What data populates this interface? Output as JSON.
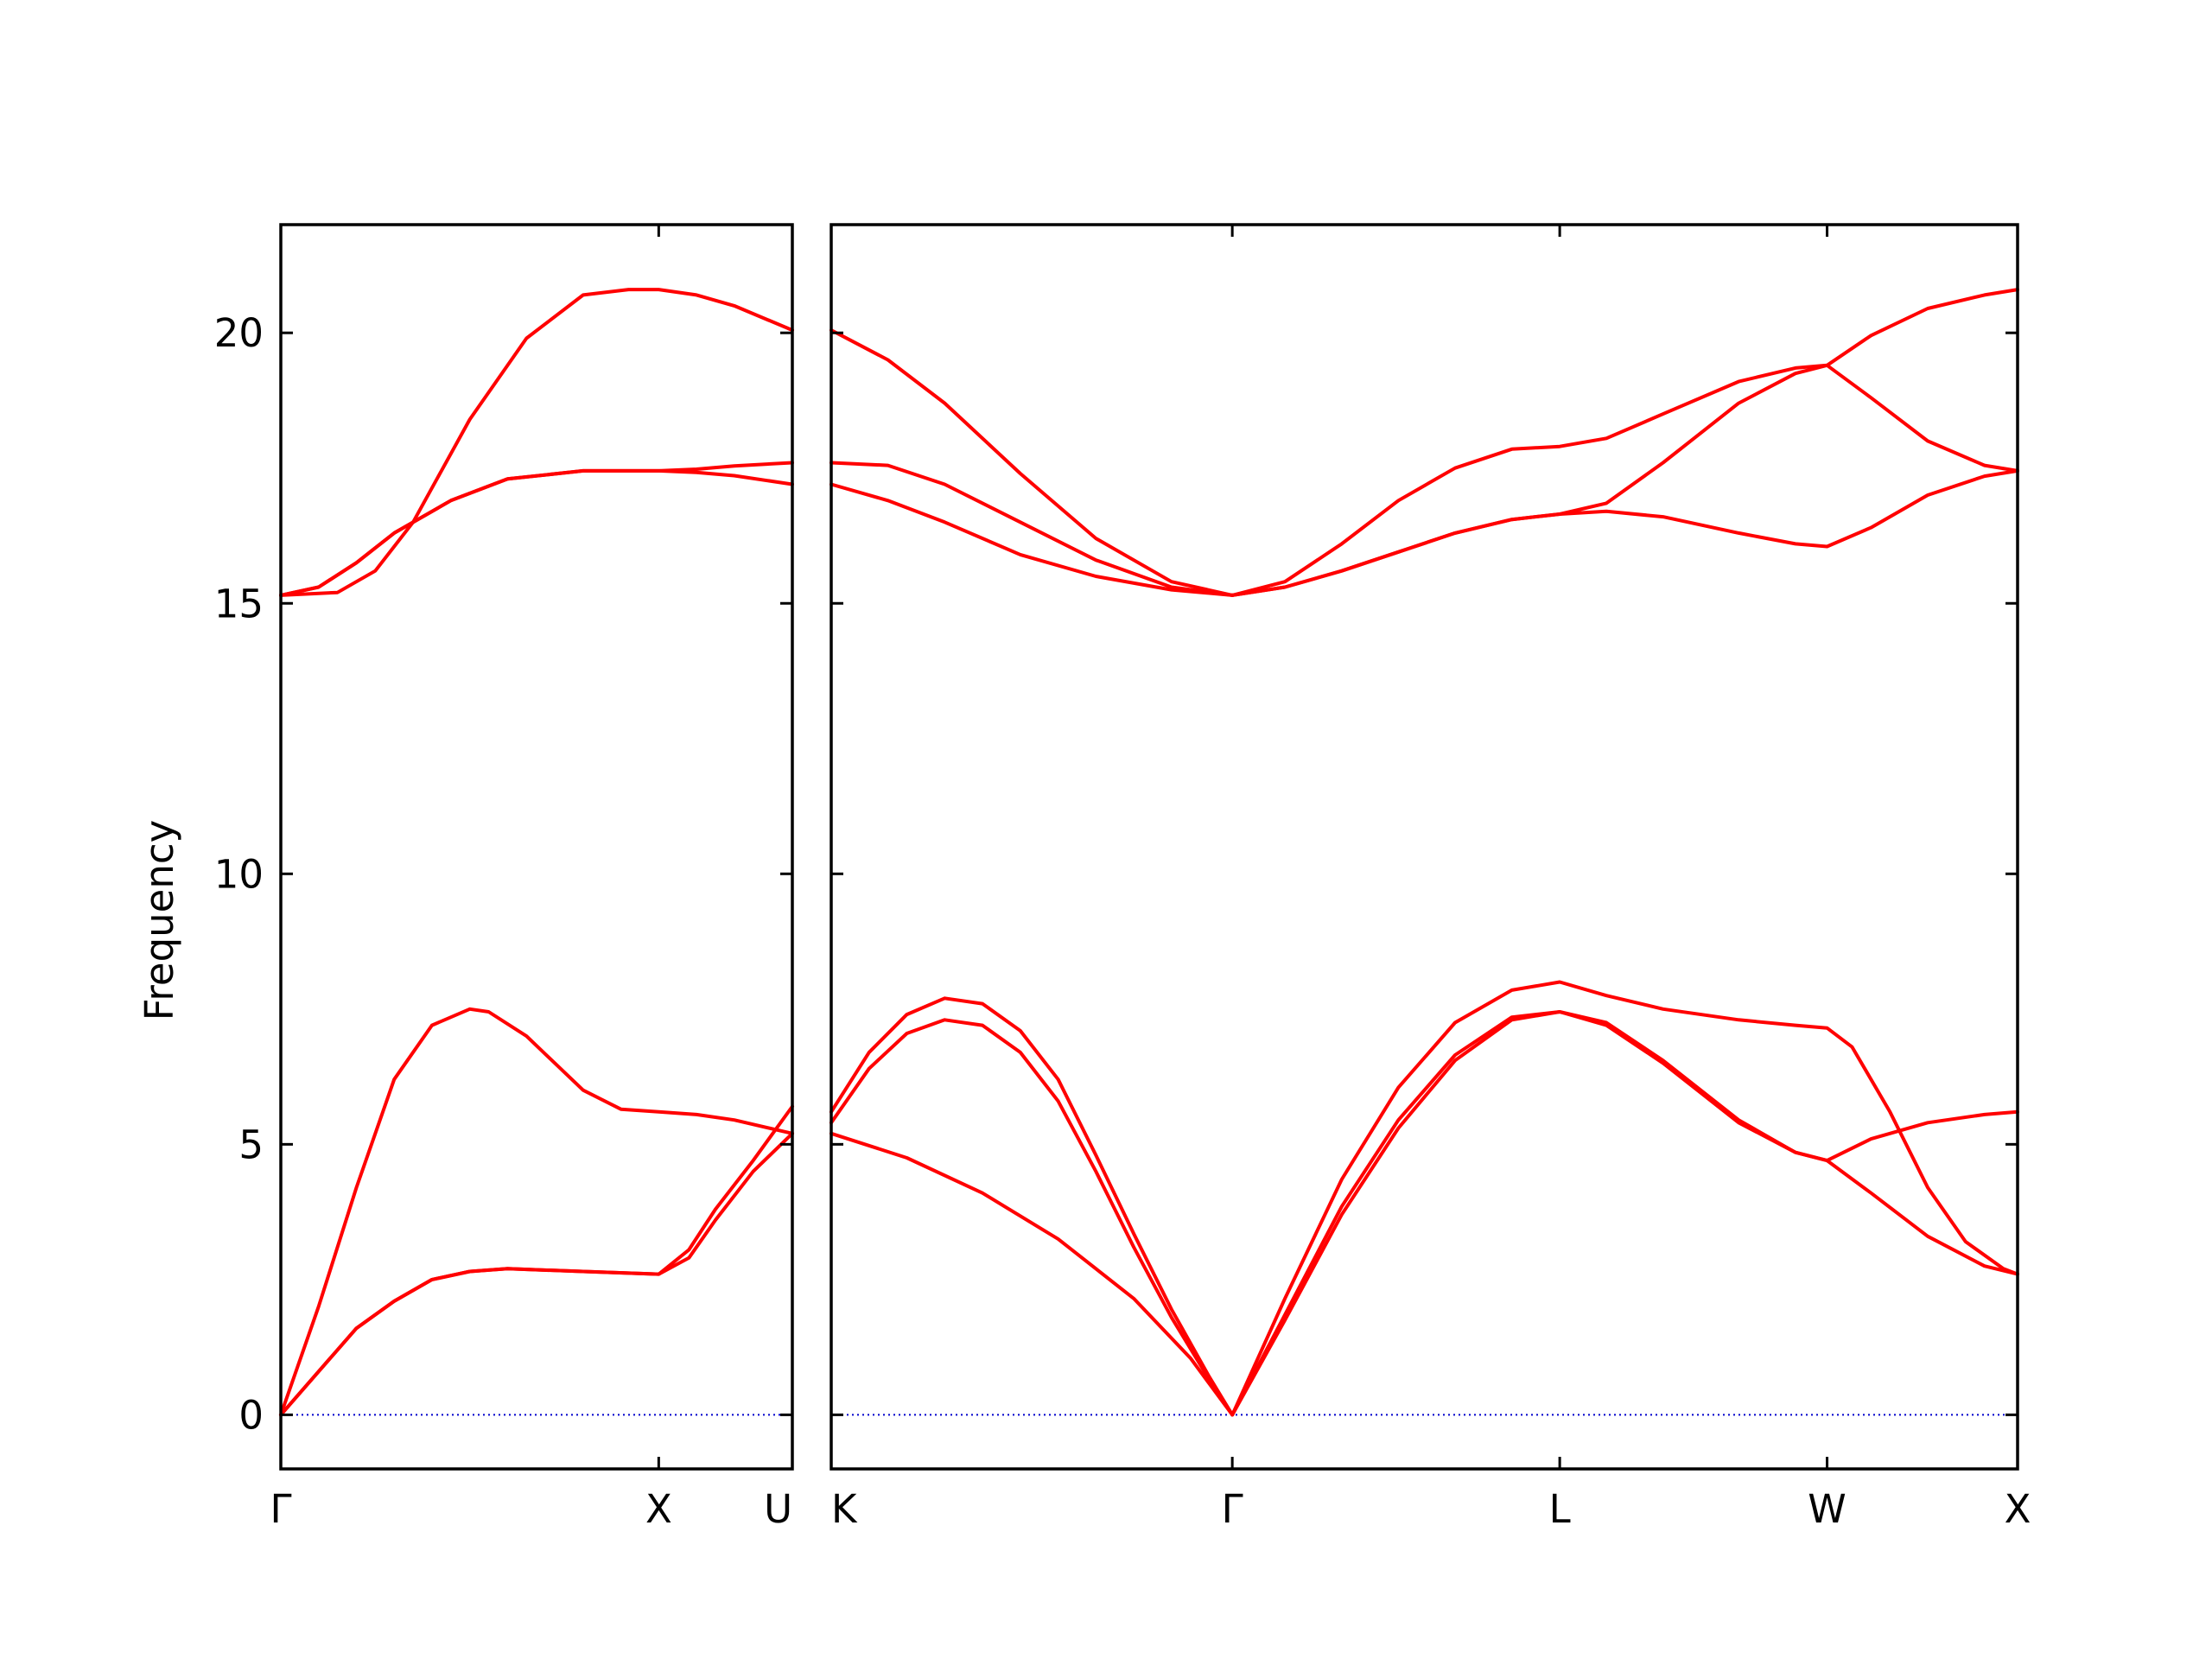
{
  "chart_data": {
    "type": "line",
    "ylabel": "Frequency",
    "ylim": [
      -1,
      22
    ],
    "yticks": [
      0,
      5,
      10,
      15,
      20
    ],
    "grid": false,
    "colors": {
      "band": "#ff0000",
      "zero_line": "#0000cc"
    },
    "segments": [
      {
        "xlim": [
          0,
          1.3536
        ],
        "xticks": [
          {
            "x": 0,
            "label": "Γ"
          },
          {
            "x": 1.0,
            "label": "X"
          },
          {
            "x": 1.3536,
            "label": "U"
          }
        ],
        "bands": [
          [
            [
              0,
              0
            ],
            [
              0.1,
              2.0
            ],
            [
              0.2,
              4.2
            ],
            [
              0.3,
              6.2
            ],
            [
              0.4,
              7.2
            ],
            [
              0.5,
              7.5
            ],
            [
              0.55,
              7.45
            ],
            [
              0.65,
              7.0
            ],
            [
              0.8,
              6.0
            ],
            [
              0.9,
              5.65
            ],
            [
              1.0,
              5.6
            ],
            [
              1.1,
              5.55
            ],
            [
              1.2,
              5.45
            ],
            [
              1.3536,
              5.2
            ]
          ],
          [
            [
              0,
              0
            ],
            [
              0.1,
              0.8
            ],
            [
              0.2,
              1.6
            ],
            [
              0.3,
              2.1
            ],
            [
              0.4,
              2.5
            ],
            [
              0.5,
              2.65
            ],
            [
              0.6,
              2.7
            ],
            [
              0.8,
              2.65
            ],
            [
              1.0,
              2.6
            ],
            [
              1.08,
              2.9
            ],
            [
              1.15,
              3.6
            ],
            [
              1.25,
              4.5
            ],
            [
              1.3536,
              5.2
            ]
          ],
          [
            [
              0,
              0
            ],
            [
              0.1,
              0.8
            ],
            [
              0.2,
              1.6
            ],
            [
              0.3,
              2.1
            ],
            [
              0.4,
              2.5
            ],
            [
              0.5,
              2.65
            ],
            [
              0.6,
              2.7
            ],
            [
              0.8,
              2.65
            ],
            [
              1.0,
              2.6
            ],
            [
              1.08,
              3.05
            ],
            [
              1.15,
              3.8
            ],
            [
              1.25,
              4.7
            ],
            [
              1.3536,
              5.7
            ]
          ],
          [
            [
              0,
              15.15
            ],
            [
              0.1,
              15.3
            ],
            [
              0.2,
              15.75
            ],
            [
              0.3,
              16.3
            ],
            [
              0.45,
              16.9
            ],
            [
              0.6,
              17.3
            ],
            [
              0.8,
              17.45
            ],
            [
              1.0,
              17.45
            ],
            [
              1.1,
              17.48
            ],
            [
              1.2,
              17.54
            ],
            [
              1.3536,
              17.6
            ]
          ],
          [
            [
              0,
              15.15
            ],
            [
              0.1,
              15.3
            ],
            [
              0.2,
              15.75
            ],
            [
              0.3,
              16.3
            ],
            [
              0.45,
              16.9
            ],
            [
              0.6,
              17.3
            ],
            [
              0.8,
              17.45
            ],
            [
              1.0,
              17.45
            ],
            [
              1.1,
              17.42
            ],
            [
              1.2,
              17.36
            ],
            [
              1.3536,
              17.2
            ]
          ],
          [
            [
              0,
              15.15
            ],
            [
              0.15,
              15.2
            ],
            [
              0.25,
              15.6
            ],
            [
              0.35,
              16.5
            ],
            [
              0.5,
              18.4
            ],
            [
              0.65,
              19.9
            ],
            [
              0.8,
              20.7
            ],
            [
              0.92,
              20.8
            ],
            [
              1.0,
              20.8
            ],
            [
              1.1,
              20.7
            ],
            [
              1.2,
              20.5
            ],
            [
              1.3536,
              20.05
            ]
          ]
        ]
      },
      {
        "xlim": [
          0,
          3.1376
        ],
        "xticks": [
          {
            "x": 0,
            "label": "K"
          },
          {
            "x": 1.0607,
            "label": "Γ"
          },
          {
            "x": 1.9267,
            "label": "L"
          },
          {
            "x": 2.6338,
            "label": "W"
          },
          {
            "x": 3.1376,
            "label": "X"
          }
        ],
        "bands": [
          [
            [
              0,
              5.2
            ],
            [
              0.2,
              4.75
            ],
            [
              0.4,
              4.1
            ],
            [
              0.6,
              3.25
            ],
            [
              0.8,
              2.15
            ],
            [
              0.95,
              1.05
            ],
            [
              1.0607,
              0
            ],
            [
              1.2,
              1.75
            ],
            [
              1.35,
              3.7
            ],
            [
              1.5,
              5.3
            ],
            [
              1.65,
              6.55
            ],
            [
              1.8,
              7.3
            ],
            [
              1.9267,
              7.45
            ],
            [
              2.05,
              7.2
            ],
            [
              2.2,
              6.5
            ],
            [
              2.4,
              5.4
            ],
            [
              2.55,
              4.85
            ],
            [
              2.6338,
              4.7
            ],
            [
              2.75,
              4.1
            ],
            [
              2.9,
              3.3
            ],
            [
              3.05,
              2.75
            ],
            [
              3.1376,
              2.6
            ]
          ],
          [
            [
              0,
              5.4
            ],
            [
              0.1,
              6.4
            ],
            [
              0.2,
              7.05
            ],
            [
              0.3,
              7.3
            ],
            [
              0.4,
              7.2
            ],
            [
              0.5,
              6.7
            ],
            [
              0.6,
              5.8
            ],
            [
              0.7,
              4.5
            ],
            [
              0.8,
              3.1
            ],
            [
              0.9,
              1.8
            ],
            [
              1.0,
              0.65
            ],
            [
              1.0607,
              0
            ],
            [
              1.2,
              1.85
            ],
            [
              1.35,
              3.85
            ],
            [
              1.5,
              5.45
            ],
            [
              1.65,
              6.65
            ],
            [
              1.8,
              7.35
            ],
            [
              1.9267,
              7.45
            ],
            [
              2.05,
              7.25
            ],
            [
              2.2,
              6.55
            ],
            [
              2.4,
              5.45
            ],
            [
              2.55,
              4.85
            ],
            [
              2.6338,
              4.7
            ],
            [
              2.75,
              5.1
            ],
            [
              2.9,
              5.4
            ],
            [
              3.05,
              5.55
            ],
            [
              3.1376,
              5.6
            ]
          ],
          [
            [
              0,
              5.6
            ],
            [
              0.1,
              6.7
            ],
            [
              0.2,
              7.4
            ],
            [
              0.3,
              7.7
            ],
            [
              0.4,
              7.6
            ],
            [
              0.5,
              7.1
            ],
            [
              0.6,
              6.2
            ],
            [
              0.7,
              4.8
            ],
            [
              0.8,
              3.35
            ],
            [
              0.9,
              1.95
            ],
            [
              1.0,
              0.7
            ],
            [
              1.0607,
              0
            ],
            [
              1.2,
              2.15
            ],
            [
              1.35,
              4.35
            ],
            [
              1.5,
              6.05
            ],
            [
              1.65,
              7.25
            ],
            [
              1.8,
              7.85
            ],
            [
              1.9267,
              8.0
            ],
            [
              2.05,
              7.75
            ],
            [
              2.2,
              7.5
            ],
            [
              2.4,
              7.3
            ],
            [
              2.55,
              7.2
            ],
            [
              2.6338,
              7.15
            ],
            [
              2.7,
              6.8
            ],
            [
              2.8,
              5.6
            ],
            [
              2.9,
              4.2
            ],
            [
              3.0,
              3.2
            ],
            [
              3.1,
              2.7
            ],
            [
              3.1376,
              2.6
            ]
          ],
          [
            [
              0,
              17.2
            ],
            [
              0.15,
              16.9
            ],
            [
              0.3,
              16.5
            ],
            [
              0.5,
              15.9
            ],
            [
              0.7,
              15.5
            ],
            [
              0.9,
              15.25
            ],
            [
              1.0607,
              15.15
            ],
            [
              1.2,
              15.3
            ],
            [
              1.35,
              15.6
            ],
            [
              1.5,
              15.95
            ],
            [
              1.65,
              16.3
            ],
            [
              1.8,
              16.55
            ],
            [
              1.9267,
              16.65
            ],
            [
              2.05,
              16.7
            ],
            [
              2.2,
              16.6
            ],
            [
              2.4,
              16.3
            ],
            [
              2.55,
              16.1
            ],
            [
              2.6338,
              16.05
            ],
            [
              2.75,
              16.4
            ],
            [
              2.9,
              17.0
            ],
            [
              3.05,
              17.35
            ],
            [
              3.1376,
              17.45
            ]
          ],
          [
            [
              0,
              17.6
            ],
            [
              0.15,
              17.55
            ],
            [
              0.3,
              17.2
            ],
            [
              0.5,
              16.5
            ],
            [
              0.7,
              15.8
            ],
            [
              0.9,
              15.3
            ],
            [
              1.0607,
              15.15
            ],
            [
              1.2,
              15.3
            ],
            [
              1.35,
              15.6
            ],
            [
              1.5,
              15.95
            ],
            [
              1.65,
              16.3
            ],
            [
              1.8,
              16.55
            ],
            [
              1.9267,
              16.65
            ],
            [
              2.05,
              16.85
            ],
            [
              2.2,
              17.6
            ],
            [
              2.4,
              18.7
            ],
            [
              2.55,
              19.25
            ],
            [
              2.6338,
              19.4
            ],
            [
              2.75,
              18.8
            ],
            [
              2.9,
              18.0
            ],
            [
              3.05,
              17.55
            ],
            [
              3.1376,
              17.45
            ]
          ],
          [
            [
              0,
              20.05
            ],
            [
              0.15,
              19.5
            ],
            [
              0.3,
              18.7
            ],
            [
              0.5,
              17.4
            ],
            [
              0.7,
              16.2
            ],
            [
              0.9,
              15.4
            ],
            [
              1.0607,
              15.15
            ],
            [
              1.2,
              15.4
            ],
            [
              1.35,
              16.1
            ],
            [
              1.5,
              16.9
            ],
            [
              1.65,
              17.5
            ],
            [
              1.8,
              17.85
            ],
            [
              1.9267,
              17.9
            ],
            [
              2.05,
              18.05
            ],
            [
              2.2,
              18.5
            ],
            [
              2.4,
              19.1
            ],
            [
              2.55,
              19.35
            ],
            [
              2.6338,
              19.4
            ],
            [
              2.75,
              19.95
            ],
            [
              2.9,
              20.45
            ],
            [
              3.05,
              20.7
            ],
            [
              3.1376,
              20.8
            ]
          ]
        ]
      }
    ]
  }
}
